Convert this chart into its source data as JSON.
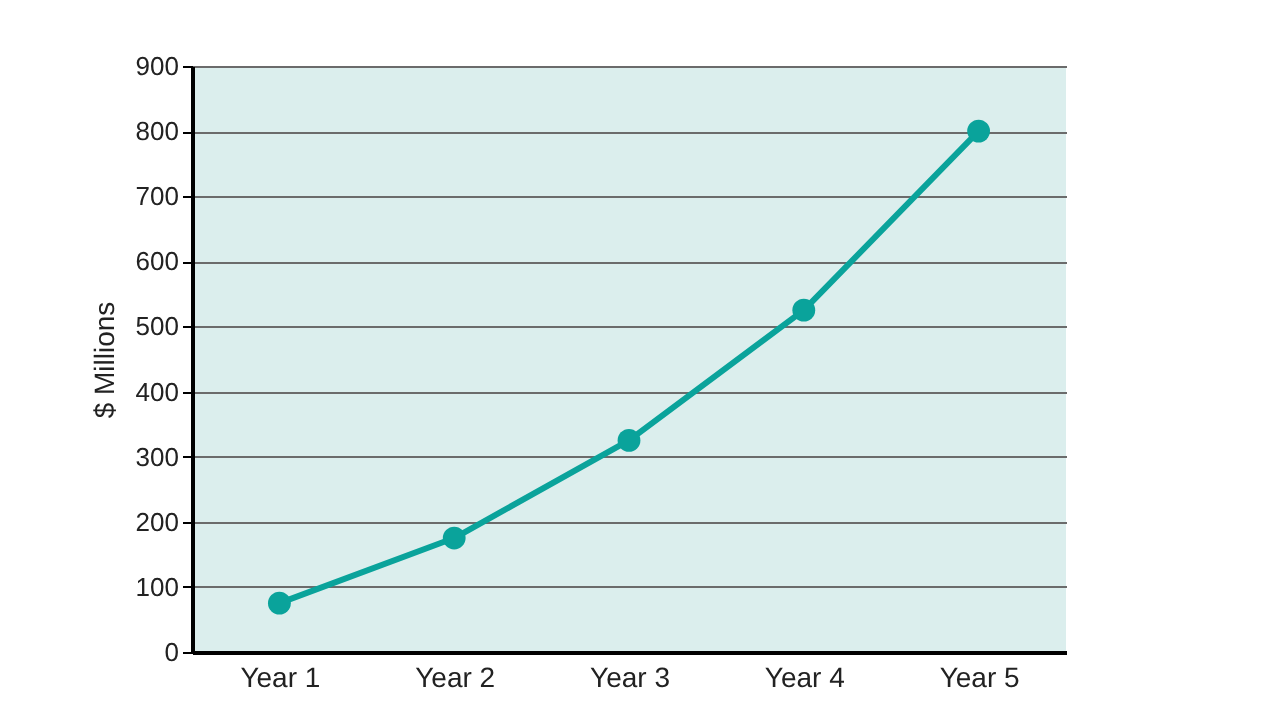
{
  "chart_data": {
    "type": "line",
    "ylabel": "$ Millions",
    "categories": [
      "Year 1",
      "Year 2",
      "Year 3",
      "Year 4",
      "Year 5"
    ],
    "series": [
      {
        "color": "#0aa39b",
        "values": [
          75,
          175,
          325,
          525,
          800
        ]
      }
    ],
    "ylim": [
      0,
      900
    ],
    "yticks": [
      0,
      100,
      200,
      300,
      400,
      500,
      600,
      700,
      800,
      900
    ],
    "grid": "y",
    "marker": "circle",
    "line_style": "solid",
    "legend": false
  }
}
